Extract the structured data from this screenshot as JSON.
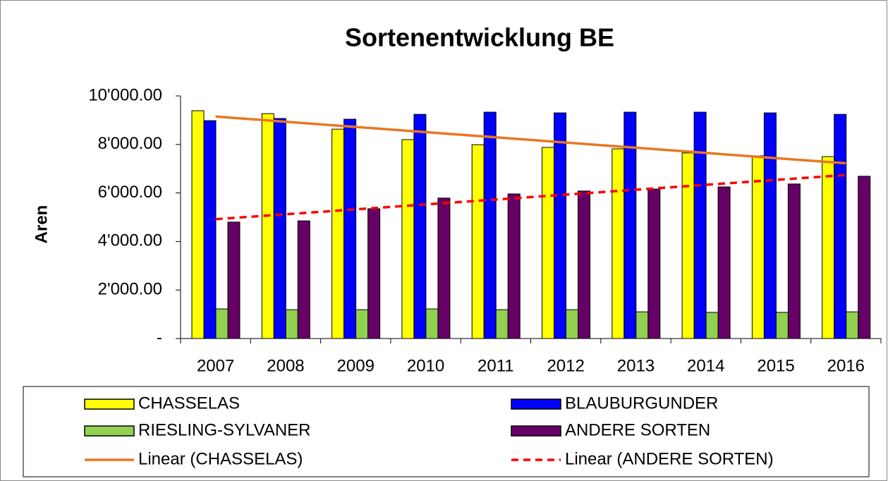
{
  "chart_data": {
    "type": "bar",
    "title": "Sortenentwicklung BE",
    "y_label": "Aren",
    "categories": [
      "2007",
      "2008",
      "2009",
      "2010",
      "2011",
      "2012",
      "2013",
      "2014",
      "2015",
      "2016"
    ],
    "series": [
      {
        "name": "CHASSELAS",
        "color": "#ffff00",
        "values": [
          9390,
          9270,
          8630,
          8200,
          7990,
          7880,
          7820,
          7650,
          7530,
          7500
        ]
      },
      {
        "name": "BLAUBURGUNDER",
        "color": "#0000ff",
        "values": [
          8980,
          9070,
          9040,
          9240,
          9330,
          9300,
          9330,
          9330,
          9300,
          9240
        ]
      },
      {
        "name": "RIESLING-SYLVANER",
        "color": "#92d050",
        "values": [
          1220,
          1190,
          1190,
          1220,
          1190,
          1190,
          1100,
          1080,
          1080,
          1100
        ]
      },
      {
        "name": "ANDERE SORTEN",
        "color": "#660066",
        "values": [
          4800,
          4850,
          5350,
          5790,
          5960,
          6080,
          6160,
          6250,
          6370,
          6690
        ]
      }
    ],
    "trendlines": [
      {
        "name": "Linear (CHASSELAS)",
        "series": 0,
        "color": "#e87722",
        "dashed": false
      },
      {
        "name": "Linear (ANDERE SORTEN)",
        "series": 3,
        "color": "#ff0000",
        "dashed": true
      }
    ],
    "ylim": [
      0,
      10000
    ],
    "yticks": [
      {
        "value": 0,
        "label": "-"
      },
      {
        "value": 2000,
        "label": "2'000.00"
      },
      {
        "value": 4000,
        "label": "4'000.00"
      },
      {
        "value": 6000,
        "label": "6'000.00"
      },
      {
        "value": 8000,
        "label": "8'000.00"
      },
      {
        "value": 10000,
        "label": "10'000.00"
      }
    ]
  }
}
